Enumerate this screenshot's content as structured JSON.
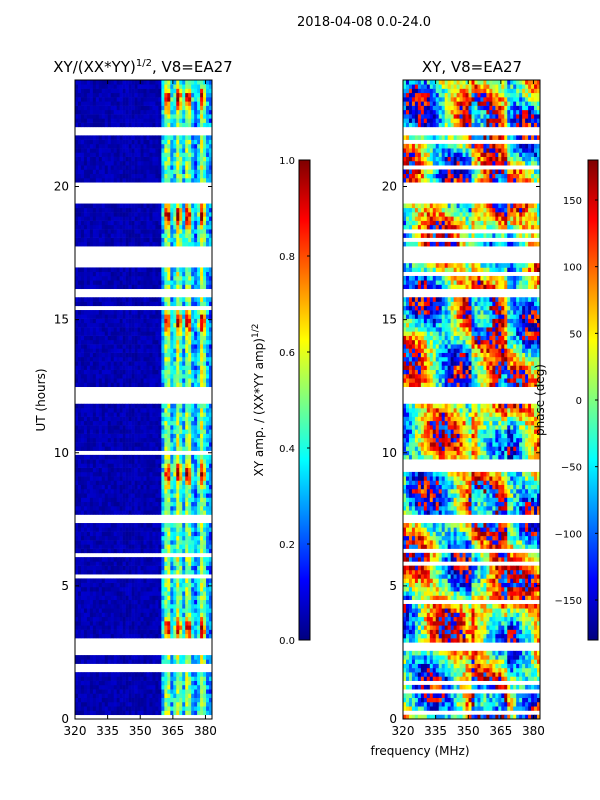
{
  "suptitle": "2018-04-08 0.0-24.0",
  "colors": {
    "jet": [
      "#00007f",
      "#0000ff",
      "#007fff",
      "#00ffff",
      "#7fff7f",
      "#ffff00",
      "#ff7f00",
      "#ff0000",
      "#7f0000"
    ],
    "axes": "#000000",
    "gap": "#ffffff"
  },
  "chart_data": [
    {
      "type": "heatmap",
      "title_main": "XY/(XX*YY)",
      "title_sup": "1/2",
      "title_rest": ", V8=EA27",
      "xlabel": "",
      "ylabel": "UT (hours)",
      "xlim": [
        320,
        383
      ],
      "ylim": [
        0,
        24
      ],
      "xticks": [
        "320",
        "335",
        "350",
        "365",
        "380"
      ],
      "xtick_values": [
        320,
        335,
        350,
        365,
        380
      ],
      "yticks": [
        "0",
        "5",
        "10",
        "15",
        "20"
      ],
      "ytick_values": [
        0,
        5,
        10,
        15,
        20
      ],
      "colorbar": {
        "label_main": "XY amp. / (XX*YY amp)",
        "label_sup": "1/2",
        "range": [
          0.0,
          1.0
        ],
        "ticks": [
          "0.0",
          "0.2",
          "0.4",
          "0.6",
          "0.8",
          "1.0"
        ],
        "tick_values": [
          0.0,
          0.2,
          0.4,
          0.6,
          0.8,
          1.0
        ]
      },
      "pattern": "amplitude",
      "signal_band_mhz": [
        360,
        383
      ],
      "bright_channels_mhz": [
        362.5,
        367.5,
        372,
        378.5
      ],
      "hot_hours": [
        3.4,
        9.2,
        14.9,
        18.9,
        23.3
      ],
      "data_gaps_hours": [
        [
          19.3,
          20.1
        ],
        [
          11.9,
          12.5
        ],
        [
          2.6,
          2.9
        ],
        [
          17.2,
          17.8
        ],
        [
          15.9,
          16.2
        ],
        [
          7.4,
          7.6
        ],
        [
          21.9,
          22.2
        ]
      ]
    },
    {
      "type": "heatmap",
      "title_main": "XY, V8=EA27",
      "title_sup": "",
      "title_rest": "",
      "xlabel": "frequency (MHz)",
      "ylabel": "",
      "xlim": [
        320,
        383
      ],
      "ylim": [
        0,
        24
      ],
      "xticks": [
        "320",
        "335",
        "350",
        "365",
        "380"
      ],
      "xtick_values": [
        320,
        335,
        350,
        365,
        380
      ],
      "yticks": [
        "0",
        "5",
        "10",
        "15",
        "20"
      ],
      "ytick_values": [
        0,
        5,
        10,
        15,
        20
      ],
      "colorbar": {
        "label_main": "phase (deg)",
        "label_sup": "",
        "range": [
          -180,
          180
        ],
        "ticks": [
          "−150",
          "−100",
          "−50",
          "0",
          "50",
          "100",
          "150"
        ],
        "tick_values": [
          -150,
          -100,
          -50,
          0,
          50,
          100,
          150
        ]
      },
      "pattern": "phase",
      "data_gaps_hours": [
        [
          19.3,
          20.1
        ],
        [
          11.9,
          12.5
        ],
        [
          2.6,
          2.9
        ],
        [
          17.2,
          17.8
        ],
        [
          15.9,
          16.2
        ],
        [
          7.4,
          7.6
        ],
        [
          21.9,
          22.2
        ]
      ]
    }
  ]
}
